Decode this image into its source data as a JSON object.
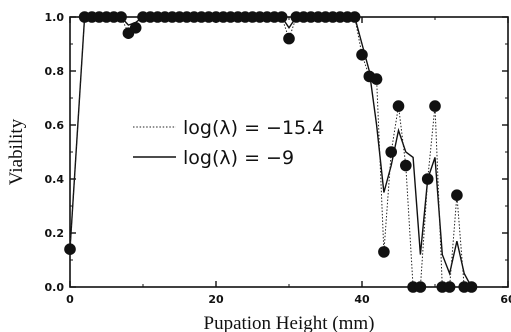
{
  "chart_data": {
    "type": "line",
    "xlabel": "Pupation Height (mm)",
    "ylabel": "Viability",
    "xlim": [
      0,
      60
    ],
    "ylim": [
      0.0,
      1.0
    ],
    "x_ticks": [
      "0",
      "20",
      "40",
      "60"
    ],
    "y_ticks": [
      "0.0",
      "0.2",
      "0.4",
      "0.6",
      "0.8",
      "1.0"
    ],
    "grid": false,
    "legend_position": "center-left",
    "series": [
      {
        "name": "log(λ) = −15.4",
        "style": "dotted",
        "markers": true,
        "x": [
          0,
          2,
          3,
          4,
          5,
          6,
          7,
          8,
          9,
          10,
          11,
          12,
          13,
          14,
          15,
          16,
          17,
          18,
          19,
          20,
          21,
          22,
          23,
          24,
          25,
          26,
          27,
          28,
          29,
          30,
          31,
          32,
          33,
          34,
          35,
          36,
          37,
          38,
          39,
          40,
          41,
          42,
          43,
          44,
          45,
          46,
          47,
          48,
          49,
          50,
          51,
          52,
          53,
          54,
          55
        ],
        "y": [
          0.14,
          1.0,
          1.0,
          1.0,
          1.0,
          1.0,
          1.0,
          0.94,
          0.96,
          1.0,
          1.0,
          1.0,
          1.0,
          1.0,
          1.0,
          1.0,
          1.0,
          1.0,
          1.0,
          1.0,
          1.0,
          1.0,
          1.0,
          1.0,
          1.0,
          1.0,
          1.0,
          1.0,
          1.0,
          0.92,
          1.0,
          1.0,
          1.0,
          1.0,
          1.0,
          1.0,
          1.0,
          1.0,
          1.0,
          0.86,
          0.78,
          0.77,
          0.13,
          0.5,
          0.67,
          0.45,
          0.0,
          0.0,
          0.4,
          0.67,
          0.0,
          0.0,
          0.34,
          0.0,
          0.0
        ]
      },
      {
        "name": "log(λ) = −9",
        "style": "solid",
        "markers": false,
        "x": [
          0,
          2,
          3,
          4,
          5,
          6,
          7,
          8,
          9,
          10,
          11,
          12,
          13,
          14,
          15,
          16,
          17,
          18,
          19,
          20,
          21,
          22,
          23,
          24,
          25,
          26,
          27,
          28,
          29,
          30,
          31,
          32,
          33,
          34,
          35,
          36,
          37,
          38,
          39,
          40,
          41,
          42,
          43,
          44,
          45,
          46,
          47,
          48,
          49,
          50,
          51,
          52,
          53,
          54,
          55
        ],
        "y": [
          0.14,
          1.0,
          1.0,
          1.0,
          1.0,
          1.0,
          1.0,
          0.97,
          0.98,
          1.0,
          1.0,
          1.0,
          1.0,
          1.0,
          1.0,
          1.0,
          1.0,
          1.0,
          1.0,
          1.0,
          1.0,
          1.0,
          1.0,
          1.0,
          1.0,
          1.0,
          1.0,
          1.0,
          1.0,
          0.96,
          1.0,
          1.0,
          1.0,
          1.0,
          1.0,
          1.0,
          1.0,
          1.0,
          1.0,
          0.9,
          0.8,
          0.6,
          0.35,
          0.45,
          0.58,
          0.5,
          0.48,
          0.12,
          0.4,
          0.48,
          0.12,
          0.05,
          0.17,
          0.05,
          0.0
        ]
      }
    ],
    "legend": {
      "entries": [
        "log(λ) = −15.4",
        "log(λ) = −9"
      ]
    }
  }
}
